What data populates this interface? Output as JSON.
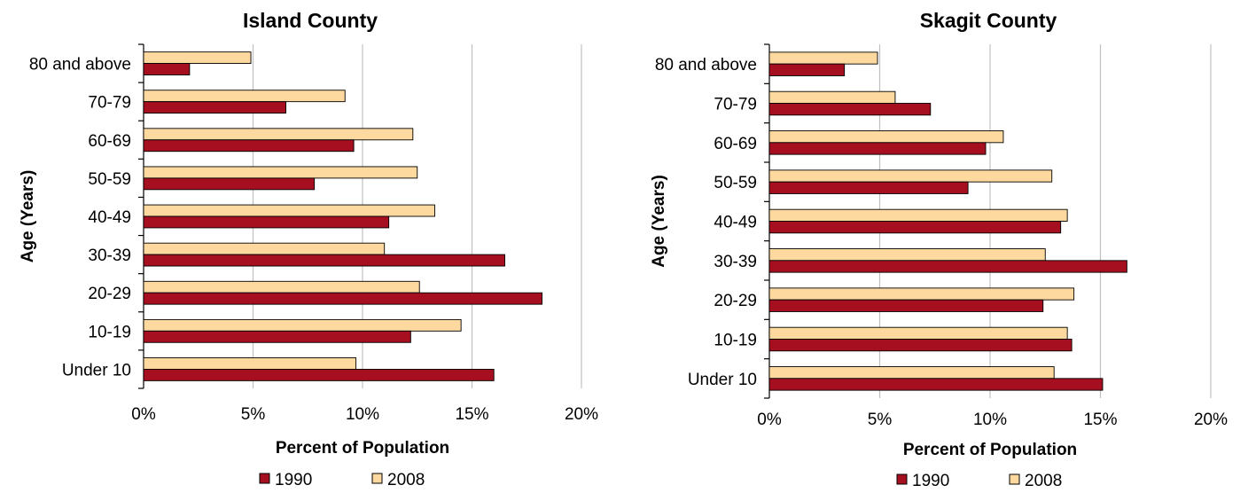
{
  "chart_data": [
    {
      "type": "bar",
      "orientation": "horizontal",
      "title": "Island County",
      "xlabel": "Percent of Population",
      "ylabel": "Age (Years)",
      "xlim": [
        0,
        20
      ],
      "x_ticks": [
        "0%",
        "5%",
        "10%",
        "15%",
        "20%"
      ],
      "grid": true,
      "legend": "bottom",
      "categories": [
        "Under 10",
        "10-19",
        "20-29",
        "30-39",
        "40-49",
        "50-59",
        "60-69",
        "70-79",
        "80 and above"
      ],
      "series": [
        {
          "name": "1990",
          "color": "#a50f1f",
          "values": [
            16.0,
            12.2,
            18.2,
            16.5,
            11.2,
            7.8,
            9.6,
            6.5,
            2.1
          ]
        },
        {
          "name": "2008",
          "color": "#fdd9a0",
          "values": [
            9.7,
            14.5,
            12.6,
            11.0,
            13.3,
            12.5,
            12.3,
            9.2,
            4.9
          ]
        }
      ]
    },
    {
      "type": "bar",
      "orientation": "horizontal",
      "title": "Skagit County",
      "xlabel": "Percent of Population",
      "ylabel": "Age (Years)",
      "xlim": [
        0,
        20
      ],
      "x_ticks": [
        "0%",
        "5%",
        "10%",
        "15%",
        "20%"
      ],
      "grid": true,
      "legend": "bottom",
      "categories": [
        "Under 10",
        "10-19",
        "20-29",
        "30-39",
        "40-49",
        "50-59",
        "60-69",
        "70-79",
        "80 and above"
      ],
      "series": [
        {
          "name": "1990",
          "color": "#a50f1f",
          "values": [
            15.1,
            13.7,
            12.4,
            16.2,
            13.2,
            9.0,
            9.8,
            7.3,
            3.4
          ]
        },
        {
          "name": "2008",
          "color": "#fdd9a0",
          "values": [
            12.9,
            13.5,
            13.8,
            12.5,
            13.5,
            12.8,
            10.6,
            5.7,
            4.9
          ]
        }
      ]
    }
  ]
}
